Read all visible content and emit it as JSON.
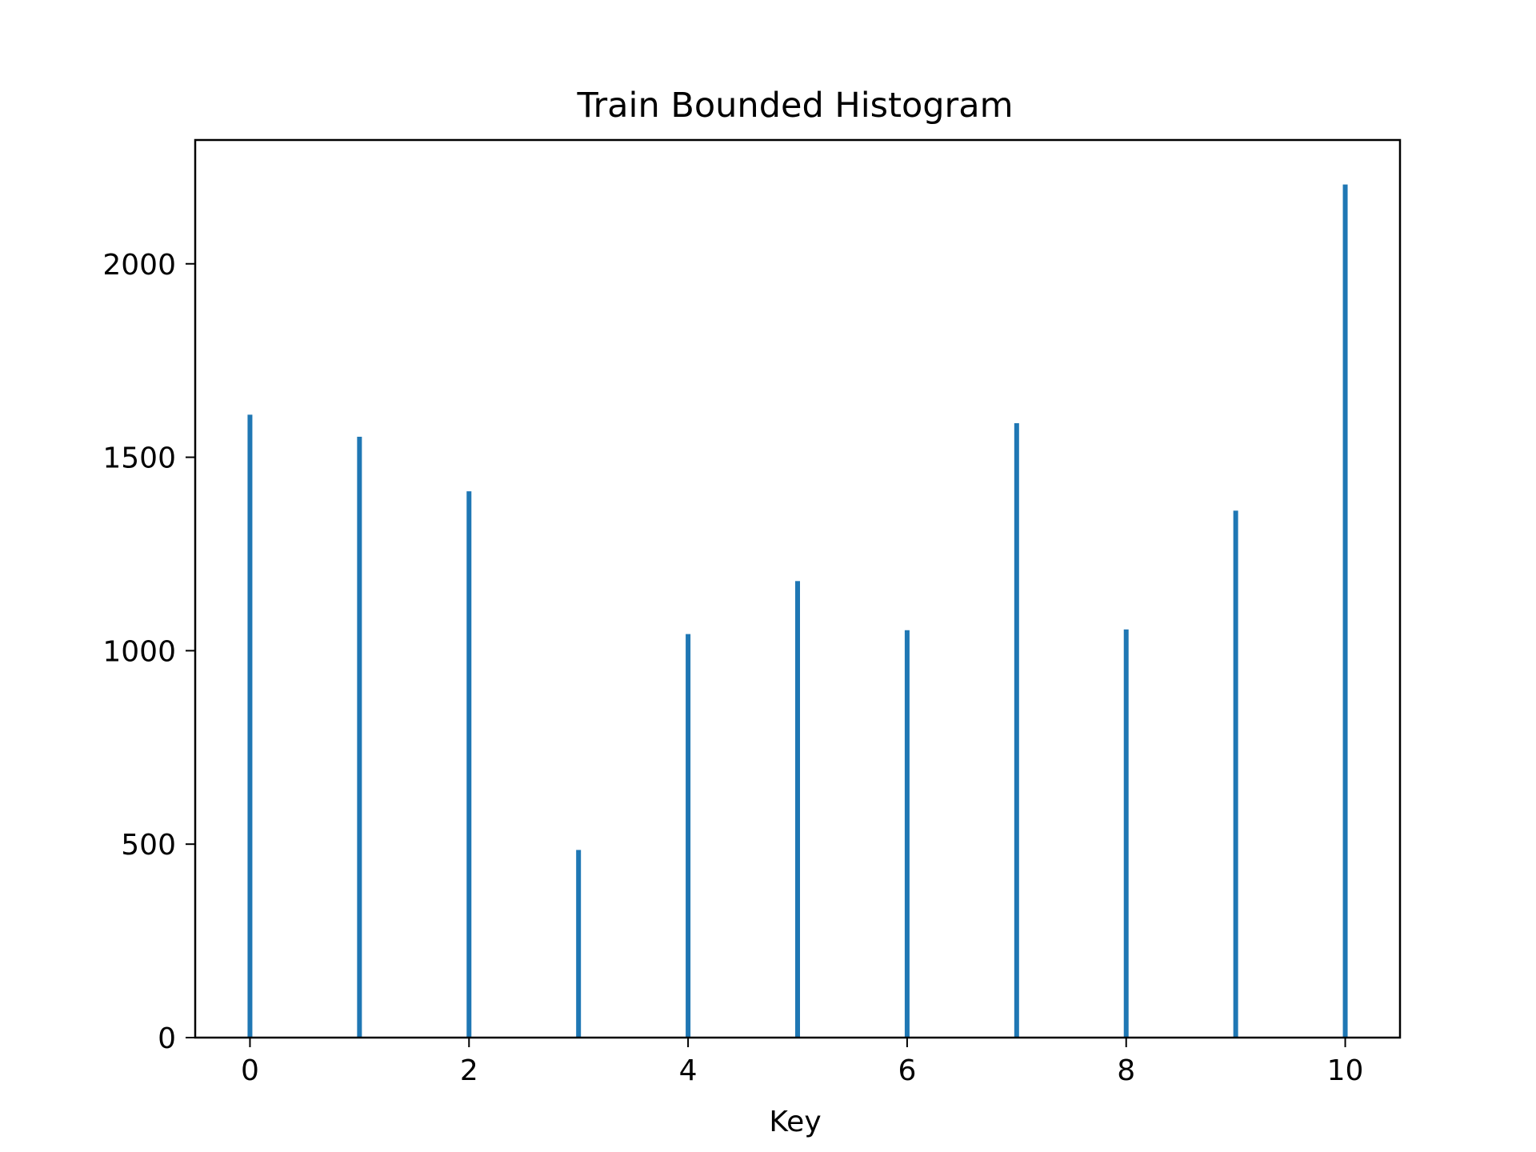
{
  "chart_data": {
    "type": "bar",
    "title": "Train Bounded Histogram",
    "xlabel": "Key",
    "ylabel": "",
    "categories": [
      0,
      1,
      2,
      3,
      4,
      5,
      6,
      7,
      8,
      9,
      10
    ],
    "values": [
      1610,
      1553,
      1412,
      485,
      1043,
      1180,
      1053,
      1588,
      1055,
      1362,
      2205
    ],
    "xlim": [
      -0.5,
      10.5
    ],
    "ylim": [
      0,
      2320
    ],
    "xticks": [
      0,
      2,
      4,
      6,
      8,
      10
    ],
    "yticks": [
      0,
      500,
      1000,
      1500,
      2000
    ],
    "bar_color": "#1f77b4",
    "grid": false,
    "legend": "none"
  }
}
